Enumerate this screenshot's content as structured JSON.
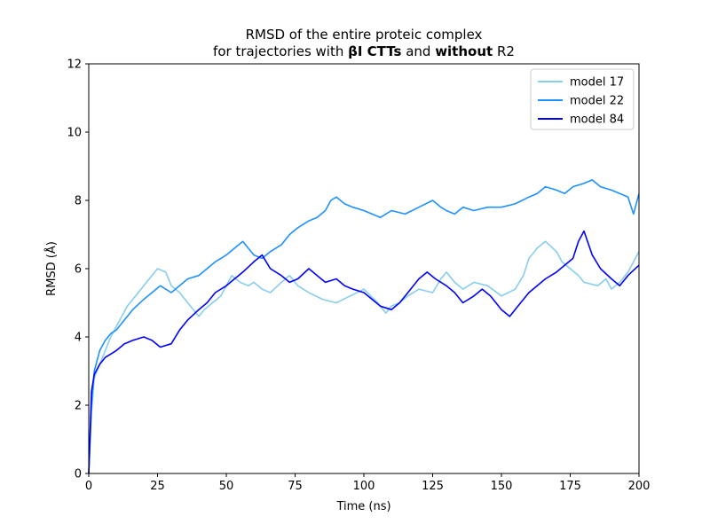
{
  "chart_data": {
    "type": "line",
    "title": {
      "line1": "RMSD of the entire proteic complex",
      "line2_prefix": "for trajectories with ",
      "line2_bold1": "βI CTTs",
      "line2_mid": " and ",
      "line2_bold2": "without",
      "line2_suffix": " R2"
    },
    "xlabel": "Time (ns)",
    "ylabel": "RMSD (Å)",
    "xlim": [
      0,
      200
    ],
    "ylim": [
      0,
      12
    ],
    "xticks": [
      0,
      25,
      50,
      75,
      100,
      125,
      150,
      175,
      200
    ],
    "yticks": [
      0,
      2,
      4,
      6,
      8,
      10,
      12
    ],
    "legend_position": "top-right",
    "grid": false,
    "series": [
      {
        "name": "model 17",
        "color": "#87CEEB",
        "x": [
          0,
          1,
          2,
          4,
          6,
          8,
          10,
          12,
          14,
          16,
          18,
          20,
          22,
          25,
          28,
          30,
          33,
          36,
          38,
          40,
          42,
          45,
          48,
          50,
          52,
          55,
          58,
          60,
          63,
          66,
          70,
          73,
          76,
          80,
          85,
          90,
          95,
          100,
          105,
          108,
          110,
          113,
          116,
          120,
          125,
          128,
          130,
          133,
          136,
          140,
          145,
          150,
          155,
          158,
          160,
          163,
          166,
          170,
          172,
          175,
          178,
          180,
          185,
          188,
          190,
          193,
          196,
          200
        ],
        "y": [
          0.0,
          1.8,
          2.8,
          3.2,
          3.6,
          4.0,
          4.3,
          4.6,
          4.9,
          5.1,
          5.3,
          5.5,
          5.7,
          6.0,
          5.9,
          5.5,
          5.3,
          5.0,
          4.8,
          4.6,
          4.8,
          5.0,
          5.2,
          5.5,
          5.8,
          5.6,
          5.5,
          5.6,
          5.4,
          5.3,
          5.6,
          5.8,
          5.5,
          5.3,
          5.1,
          5.0,
          5.2,
          5.4,
          5.0,
          4.7,
          4.9,
          5.0,
          5.2,
          5.4,
          5.3,
          5.7,
          5.9,
          5.6,
          5.4,
          5.6,
          5.5,
          5.2,
          5.4,
          5.8,
          6.3,
          6.6,
          6.8,
          6.5,
          6.2,
          6.0,
          5.8,
          5.6,
          5.5,
          5.7,
          5.4,
          5.6,
          5.9,
          6.5
        ]
      },
      {
        "name": "model 22",
        "color": "#1E90FF",
        "x": [
          0,
          1,
          2,
          4,
          6,
          8,
          10,
          13,
          16,
          20,
          23,
          26,
          30,
          33,
          36,
          40,
          43,
          46,
          50,
          53,
          56,
          60,
          63,
          66,
          70,
          73,
          76,
          80,
          83,
          86,
          88,
          90,
          93,
          96,
          100,
          103,
          106,
          110,
          115,
          120,
          125,
          128,
          130,
          133,
          136,
          140,
          145,
          150,
          155,
          160,
          163,
          166,
          170,
          173,
          176,
          180,
          183,
          186,
          190,
          193,
          196,
          198,
          200
        ],
        "y": [
          0.0,
          2.0,
          3.0,
          3.6,
          3.9,
          4.1,
          4.2,
          4.5,
          4.8,
          5.1,
          5.3,
          5.5,
          5.3,
          5.5,
          5.7,
          5.8,
          6.0,
          6.2,
          6.4,
          6.6,
          6.8,
          6.4,
          6.3,
          6.5,
          6.7,
          7.0,
          7.2,
          7.4,
          7.5,
          7.7,
          8.0,
          8.1,
          7.9,
          7.8,
          7.7,
          7.6,
          7.5,
          7.7,
          7.6,
          7.8,
          8.0,
          7.8,
          7.7,
          7.6,
          7.8,
          7.7,
          7.8,
          7.8,
          7.9,
          8.1,
          8.2,
          8.4,
          8.3,
          8.2,
          8.4,
          8.5,
          8.6,
          8.4,
          8.3,
          8.2,
          8.1,
          7.6,
          8.2
        ]
      },
      {
        "name": "model 84",
        "color": "#0000FF",
        "x": [
          0,
          1,
          2,
          4,
          6,
          8,
          10,
          13,
          16,
          20,
          23,
          26,
          30,
          33,
          36,
          40,
          43,
          46,
          50,
          53,
          56,
          60,
          63,
          66,
          70,
          73,
          76,
          80,
          83,
          86,
          90,
          93,
          96,
          100,
          103,
          106,
          110,
          113,
          116,
          120,
          123,
          126,
          130,
          133,
          136,
          140,
          143,
          146,
          150,
          153,
          156,
          160,
          163,
          166,
          170,
          173,
          176,
          178,
          180,
          183,
          186,
          190,
          193,
          196,
          200
        ],
        "y": [
          0.0,
          2.4,
          2.9,
          3.2,
          3.4,
          3.5,
          3.6,
          3.8,
          3.9,
          4.0,
          3.9,
          3.7,
          3.8,
          4.2,
          4.5,
          4.8,
          5.0,
          5.3,
          5.5,
          5.7,
          5.9,
          6.2,
          6.4,
          6.0,
          5.8,
          5.6,
          5.7,
          6.0,
          5.8,
          5.6,
          5.7,
          5.5,
          5.4,
          5.3,
          5.1,
          4.9,
          4.8,
          5.0,
          5.3,
          5.7,
          5.9,
          5.7,
          5.5,
          5.3,
          5.0,
          5.2,
          5.4,
          5.2,
          4.8,
          4.6,
          4.9,
          5.3,
          5.5,
          5.7,
          5.9,
          6.1,
          6.3,
          6.8,
          7.1,
          6.4,
          6.0,
          5.7,
          5.5,
          5.8,
          6.1
        ]
      }
    ]
  }
}
